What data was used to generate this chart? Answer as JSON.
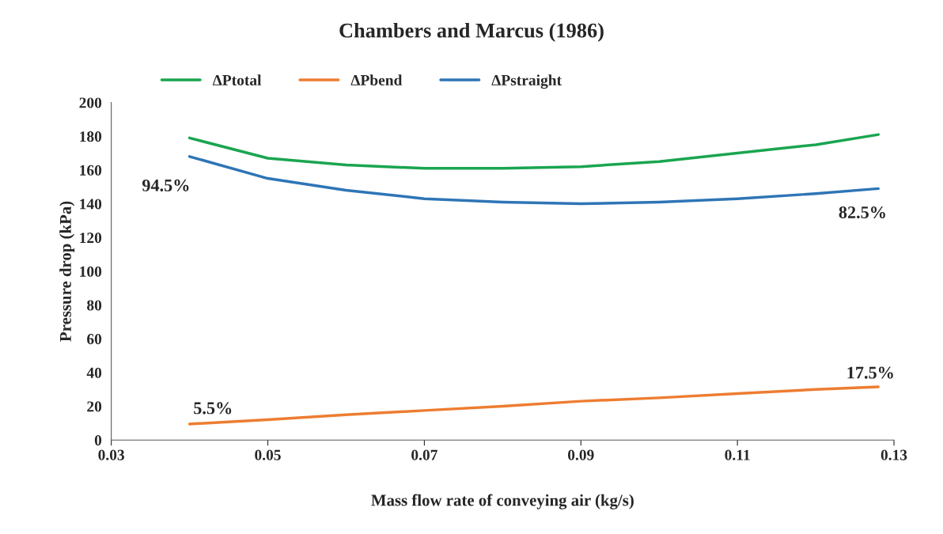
{
  "chart_data": {
    "type": "line",
    "title": "Chambers and Marcus (1986)",
    "xlabel": "Mass flow rate of conveying air (kg/s)",
    "ylabel": "Pressure drop (kPa)",
    "x": [
      0.04,
      0.05,
      0.06,
      0.07,
      0.08,
      0.09,
      0.1,
      0.11,
      0.12,
      0.128
    ],
    "series": [
      {
        "name": "ΔPtotal",
        "color": "#1aa550",
        "values": [
          179,
          167,
          163,
          161,
          161,
          162,
          165,
          170,
          175,
          181
        ]
      },
      {
        "name": "ΔPbend",
        "color": "#ed7d31",
        "values": [
          9.5,
          12,
          15,
          17.5,
          20,
          23,
          25,
          27.5,
          30,
          31.5
        ]
      },
      {
        "name": "ΔPstraight",
        "color": "#2e75b6",
        "values": [
          168,
          155,
          148,
          143,
          141,
          140,
          141,
          143,
          146,
          149
        ]
      }
    ],
    "xlim": [
      0.03,
      0.13
    ],
    "xticks": [
      0.03,
      0.05,
      0.07,
      0.09,
      0.11,
      0.13
    ],
    "ylim": [
      0,
      200
    ],
    "yticks": [
      0,
      20,
      40,
      60,
      80,
      100,
      120,
      140,
      160,
      180,
      200
    ],
    "annotations": [
      "94.5%",
      "82.5%",
      "5.5%",
      "17.5%"
    ],
    "grid": false,
    "legend": "top",
    "marker": "none",
    "line_style": "solid"
  }
}
